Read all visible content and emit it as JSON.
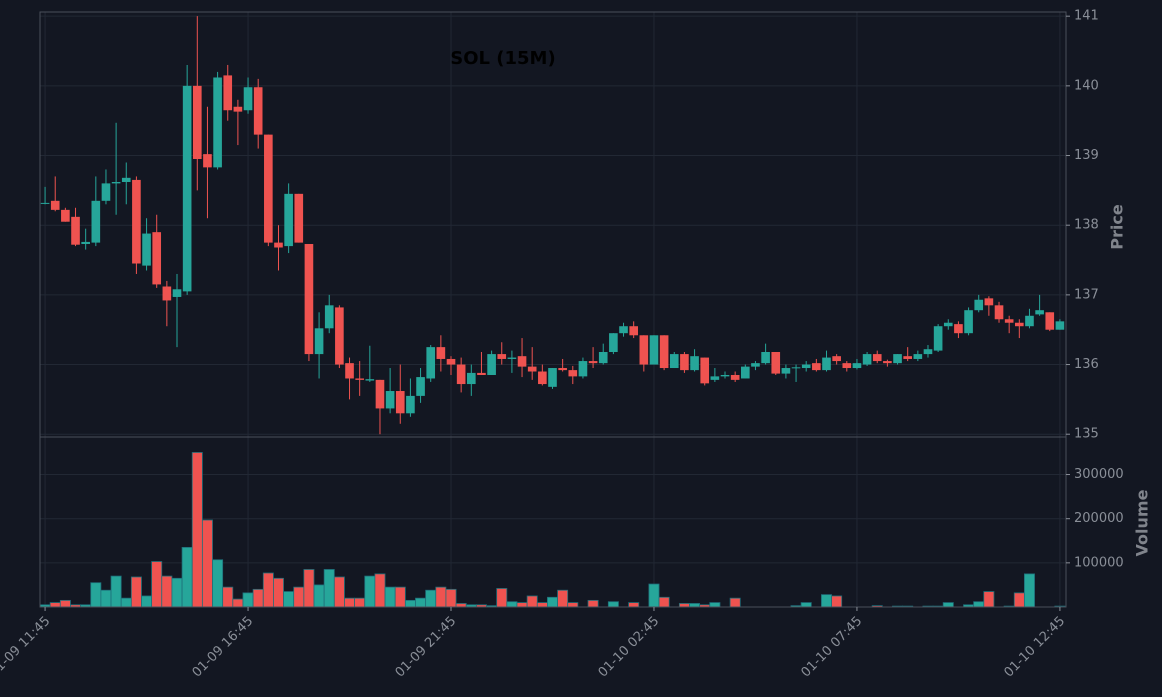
{
  "chart_data": {
    "type": "candlestick",
    "title": "SOL (15M)",
    "ylabel": "Price",
    "volume_label": "Volume",
    "categories": [
      "01-09 11:45",
      null,
      null,
      null,
      null,
      null,
      null,
      null,
      null,
      null,
      null,
      null,
      null,
      null,
      null,
      null,
      null,
      null,
      null,
      null,
      "01-09 16:45",
      null,
      null,
      null,
      null,
      null,
      null,
      null,
      null,
      null,
      null,
      null,
      null,
      null,
      null,
      null,
      null,
      null,
      null,
      null,
      "01-09 21:45",
      null,
      null,
      null,
      null,
      null,
      null,
      null,
      null,
      null,
      null,
      null,
      null,
      null,
      null,
      null,
      null,
      null,
      null,
      null,
      "01-10 02:45",
      null,
      null,
      null,
      null,
      null,
      null,
      null,
      null,
      null,
      null,
      null,
      null,
      null,
      null,
      null,
      null,
      null,
      null,
      null,
      "01-10 07:45",
      null,
      null,
      null,
      null,
      null,
      null,
      null,
      null,
      null,
      null,
      null,
      null,
      null,
      null,
      null,
      null,
      null,
      null,
      null,
      "01-10 12:45"
    ],
    "open": [
      138.32,
      138.35,
      138.22,
      138.12,
      137.73,
      137.75,
      138.35,
      138.6,
      138.62,
      138.65,
      137.42,
      137.9,
      137.12,
      136.97,
      137.05,
      140.0,
      139.02,
      138.83,
      140.15,
      139.7,
      139.65,
      139.98,
      139.3,
      137.75,
      137.7,
      138.45,
      137.73,
      136.15,
      136.52,
      136.82,
      136.02,
      135.8,
      135.77,
      135.78,
      135.37,
      135.62,
      135.3,
      135.55,
      135.8,
      136.25,
      136.08,
      136.0,
      135.72,
      135.88,
      135.85,
      136.15,
      136.08,
      136.12,
      135.97,
      135.9,
      135.68,
      135.95,
      135.92,
      135.83,
      136.05,
      136.02,
      136.18,
      136.45,
      136.55,
      136.42,
      136.0,
      136.42,
      135.95,
      136.15,
      135.92,
      136.1,
      135.78,
      135.83,
      135.85,
      135.8,
      135.97,
      136.02,
      136.18,
      135.87,
      135.95,
      135.95,
      136.02,
      135.92,
      136.12,
      136.02,
      135.95,
      136.0,
      136.15,
      136.05,
      136.02,
      136.12,
      136.08,
      136.15,
      136.2,
      136.55,
      136.58,
      136.45,
      136.78,
      136.95,
      136.85,
      136.65,
      136.6,
      136.55,
      136.72,
      136.75,
      136.5
    ],
    "high": [
      138.55,
      138.7,
      138.25,
      138.25,
      137.95,
      138.7,
      138.8,
      139.47,
      138.9,
      138.7,
      138.1,
      138.15,
      137.2,
      137.3,
      140.3,
      141.0,
      139.7,
      140.2,
      140.3,
      139.8,
      140.12,
      140.1,
      139.3,
      138.0,
      138.6,
      138.45,
      137.73,
      136.75,
      137.0,
      136.85,
      136.1,
      136.05,
      136.27,
      135.78,
      135.95,
      136.0,
      135.8,
      135.95,
      136.28,
      136.42,
      136.12,
      136.1,
      136.0,
      136.18,
      136.2,
      136.32,
      136.2,
      136.38,
      136.25,
      136.0,
      135.95,
      136.08,
      135.98,
      136.1,
      136.25,
      136.3,
      136.45,
      136.6,
      136.62,
      136.42,
      136.42,
      136.42,
      136.18,
      136.18,
      136.22,
      136.1,
      135.95,
      135.9,
      135.9,
      136.0,
      136.05,
      136.3,
      136.18,
      136.0,
      136.0,
      136.05,
      136.08,
      136.2,
      136.15,
      136.05,
      136.08,
      136.18,
      136.2,
      136.07,
      136.15,
      136.25,
      136.2,
      136.28,
      136.58,
      136.65,
      136.62,
      136.82,
      137.0,
      136.98,
      136.9,
      136.7,
      136.65,
      136.8,
      137.0,
      136.75,
      136.65
    ],
    "low": [
      138.3,
      138.2,
      138.05,
      137.7,
      137.65,
      137.7,
      138.3,
      138.15,
      138.3,
      137.3,
      137.35,
      137.1,
      136.55,
      136.25,
      137.0,
      138.5,
      138.1,
      138.8,
      139.5,
      139.15,
      139.6,
      139.1,
      137.7,
      137.35,
      137.6,
      137.75,
      136.05,
      135.8,
      136.45,
      135.95,
      135.5,
      135.55,
      135.75,
      135.0,
      135.3,
      135.15,
      135.25,
      135.45,
      135.75,
      135.9,
      135.85,
      135.6,
      135.55,
      135.85,
      135.85,
      136.0,
      135.88,
      135.82,
      135.78,
      135.7,
      135.65,
      135.9,
      135.72,
      135.8,
      135.95,
      136.0,
      136.15,
      136.4,
      136.38,
      135.9,
      136.0,
      135.92,
      135.95,
      135.88,
      135.9,
      135.7,
      135.75,
      135.8,
      135.75,
      135.8,
      135.92,
      136.0,
      135.85,
      135.8,
      135.75,
      135.9,
      135.9,
      135.9,
      136.0,
      135.9,
      135.93,
      135.98,
      136.02,
      135.97,
      136.0,
      136.05,
      136.05,
      136.1,
      136.18,
      136.5,
      136.38,
      136.42,
      136.75,
      136.7,
      136.6,
      136.45,
      136.38,
      136.52,
      136.7,
      136.48,
      136.5
    ],
    "close": [
      138.32,
      138.22,
      138.05,
      137.72,
      137.76,
      138.35,
      138.6,
      138.62,
      138.68,
      137.45,
      137.88,
      137.15,
      136.92,
      137.08,
      140.0,
      138.95,
      138.83,
      140.12,
      139.65,
      139.63,
      139.98,
      139.3,
      137.75,
      137.68,
      138.45,
      137.75,
      136.15,
      136.52,
      136.85,
      136.0,
      135.8,
      135.78,
      135.79,
      135.37,
      135.62,
      135.3,
      135.55,
      135.82,
      136.25,
      136.08,
      136.0,
      135.72,
      135.88,
      135.85,
      136.15,
      136.08,
      136.1,
      135.97,
      135.9,
      135.72,
      135.95,
      135.92,
      135.83,
      136.05,
      136.02,
      136.18,
      136.45,
      136.55,
      136.42,
      136.0,
      136.42,
      135.95,
      136.15,
      135.92,
      136.12,
      135.73,
      135.83,
      135.85,
      135.78,
      135.97,
      136.02,
      136.18,
      135.87,
      135.95,
      135.96,
      136.0,
      135.92,
      136.1,
      136.05,
      135.95,
      136.02,
      136.15,
      136.05,
      136.02,
      136.15,
      136.08,
      136.15,
      136.22,
      136.55,
      136.6,
      136.45,
      136.78,
      136.93,
      136.85,
      136.65,
      136.6,
      136.55,
      136.7,
      136.78,
      136.5,
      136.62
    ],
    "volume": [
      5000,
      10000,
      15000,
      5000,
      5000,
      55000,
      38000,
      70000,
      20000,
      68000,
      25000,
      103000,
      70000,
      65000,
      135000,
      350000,
      197000,
      107000,
      45000,
      18000,
      32000,
      40000,
      77000,
      65000,
      35000,
      45000,
      85000,
      50000,
      85000,
      68000,
      20000,
      20000,
      70000,
      75000,
      45000,
      45000,
      15000,
      20000,
      38000,
      45000,
      40000,
      8000,
      5000,
      5000,
      3000,
      42000,
      12000,
      10000,
      25000,
      10000,
      22000,
      38000,
      10000,
      0,
      15000,
      0,
      12000,
      0,
      10000,
      0,
      52000,
      22000,
      0,
      8000,
      8000,
      5000,
      10000,
      0,
      20000,
      0,
      0,
      0,
      0,
      0,
      3000,
      10000,
      0,
      28000,
      25000,
      0,
      0,
      0,
      3000,
      0,
      2000,
      2000,
      0,
      2000,
      2000,
      10000,
      0,
      5000,
      12000,
      35000,
      0,
      2000,
      32000,
      75000,
      0,
      0,
      2000
    ],
    "ylim": [
      134.96,
      141.06
    ],
    "yticks": [
      135,
      136,
      137,
      138,
      139,
      140,
      141
    ],
    "volume_ylim": [
      0,
      385000
    ],
    "volume_yticks": [
      100000,
      200000,
      300000
    ],
    "up_color": "#26a69a",
    "down_color": "#ef5350",
    "grid": true
  }
}
